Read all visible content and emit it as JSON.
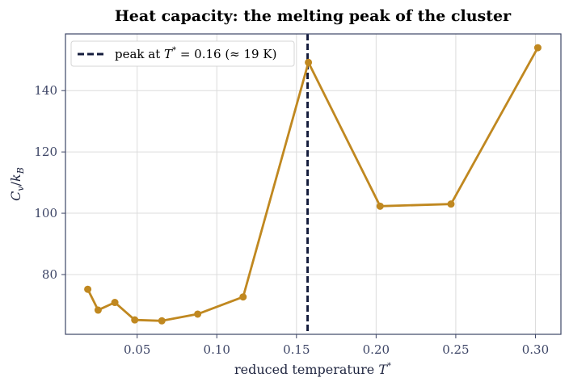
{
  "chart_data": {
    "type": "line",
    "title": "Heat capacity: the melting peak of the cluster",
    "xlabel": "reduced temperature  T*",
    "ylabel": "C_v/k_B",
    "xlim": [
      0.005,
      0.316
    ],
    "ylim": [
      60.5,
      158.5
    ],
    "xticks": [
      0.05,
      0.1,
      0.15,
      0.2,
      0.25,
      0.3
    ],
    "xtick_labels": [
      "0.05",
      "0.10",
      "0.15",
      "0.20",
      "0.25",
      "0.30"
    ],
    "yticks": [
      80,
      100,
      120,
      140
    ],
    "ytick_labels": [
      "80",
      "100",
      "120",
      "140"
    ],
    "grid": true,
    "series": [
      {
        "color": "#c08820",
        "marker": "circle",
        "x": [
          0.019,
          0.0255,
          0.036,
          0.0485,
          0.0655,
          0.088,
          0.1165,
          0.1575,
          0.2025,
          0.247,
          0.3015
        ],
        "y": [
          75.2,
          68.4,
          70.9,
          65.2,
          64.9,
          67.1,
          72.7,
          149.2,
          102.3,
          103.0,
          154.0
        ]
      }
    ],
    "annotations": [
      {
        "type": "vline",
        "x": 0.157,
        "style": "dashed",
        "color": "#141c3c",
        "label": "peak at T* = 0.16 (≈ 19 K)"
      }
    ],
    "legend": {
      "placement": "top-left",
      "entries": [
        {
          "label": "peak at T* = 0.16 (≈ 19 K)",
          "style": "dashed",
          "color": "#141c3c"
        }
      ]
    }
  }
}
